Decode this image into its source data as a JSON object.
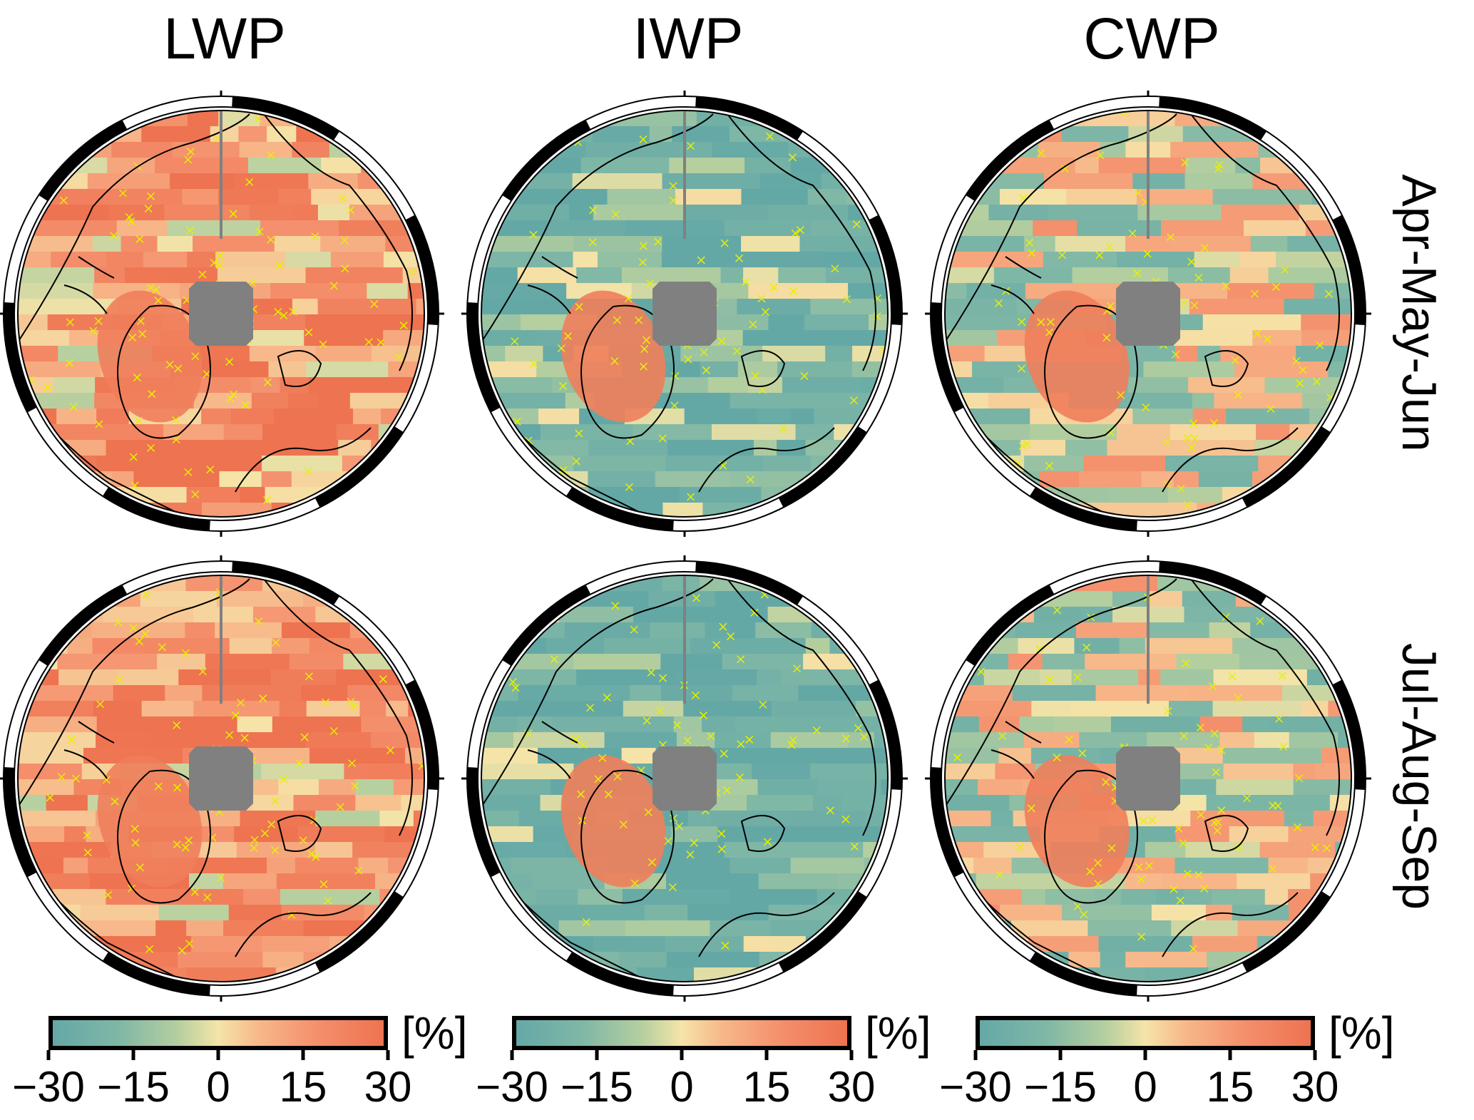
{
  "columns": [
    "LWP",
    "IWP",
    "CWP"
  ],
  "rows": [
    "Apr-May-Jun",
    "Jul-Aug-Sep"
  ],
  "colorbar": {
    "unit": "[%]",
    "ticks": [
      "−30",
      "−15",
      "0",
      "15",
      "30"
    ],
    "tick_values": [
      -30,
      -15,
      0,
      15,
      30
    ],
    "colors": {
      "negative": "#64a8a6",
      "neutral": "#f5e4a8",
      "positive": "#ee7350"
    }
  },
  "map": {
    "projection": "north polar stereographic",
    "pole_mask_color": "#808080",
    "coastline_color": "#000000",
    "hatch_color": "#e8f000",
    "frame_colors": [
      "#000000",
      "#ffffff"
    ]
  },
  "panels": [
    {
      "column": "LWP",
      "row": "Apr-May-Jun",
      "dominant": "positive"
    },
    {
      "column": "IWP",
      "row": "Apr-May-Jun",
      "dominant": "negative"
    },
    {
      "column": "CWP",
      "row": "Apr-May-Jun",
      "dominant": "mixed"
    },
    {
      "column": "LWP",
      "row": "Jul-Aug-Sep",
      "dominant": "positive"
    },
    {
      "column": "IWP",
      "row": "Jul-Aug-Sep",
      "dominant": "negative"
    },
    {
      "column": "CWP",
      "row": "Jul-Aug-Sep",
      "dominant": "mixed"
    }
  ]
}
